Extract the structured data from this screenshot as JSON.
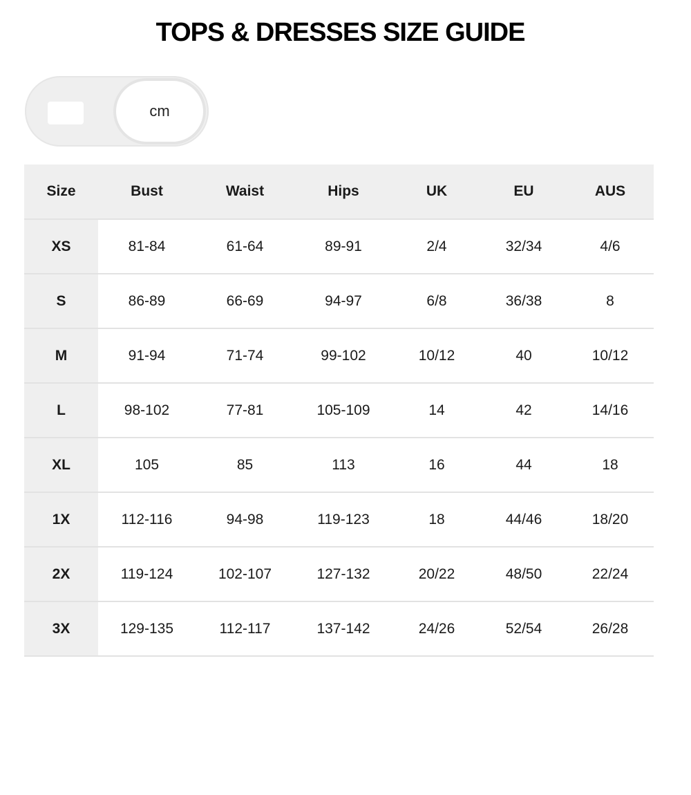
{
  "title": "TOPS & DRESSES SIZE GUIDE",
  "unit_toggle": {
    "options": [
      "",
      "cm"
    ],
    "selected": "cm"
  },
  "table": {
    "headers": [
      "Size",
      "Bust",
      "Waist",
      "Hips",
      "UK",
      "EU",
      "AUS"
    ],
    "rows": [
      [
        "XS",
        "81-84",
        "61-64",
        "89-91",
        "2/4",
        "32/34",
        "4/6"
      ],
      [
        "S",
        "86-89",
        "66-69",
        "94-97",
        "6/8",
        "36/38",
        "8"
      ],
      [
        "M",
        "91-94",
        "71-74",
        "99-102",
        "10/12",
        "40",
        "10/12"
      ],
      [
        "L",
        "98-102",
        "77-81",
        "105-109",
        "14",
        "42",
        "14/16"
      ],
      [
        "XL",
        "105",
        "85",
        "113",
        "16",
        "44",
        "18"
      ],
      [
        "1X",
        "112-116",
        "94-98",
        "119-123",
        "18",
        "44/46",
        "18/20"
      ],
      [
        "2X",
        "119-124",
        "102-107",
        "127-132",
        "20/22",
        "48/50",
        "22/24"
      ],
      [
        "3X",
        "129-135",
        "112-117",
        "137-142",
        "24/26",
        "52/54",
        "26/28"
      ]
    ]
  }
}
